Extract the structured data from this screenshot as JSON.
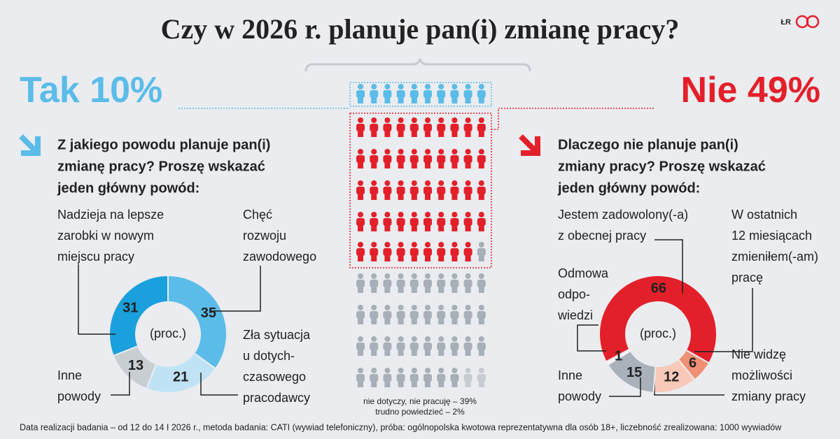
{
  "title": "Czy w 2026 r. planuje pan(i) zmianę pracy?",
  "logo": "ŁR",
  "footer": "Data realizacji badania – od 12 do 14 I 2026 r., metoda badania: CATI (wywiad telefoniczny), próba: ogólnopolska kwotowa reprezentatywna dla osób 18+, liczebność zrealizowana: 1000 wywiadów",
  "chart_data": [
    {
      "type": "pictogram",
      "series": [
        {
          "name": "Tak",
          "color": "#5bbce9",
          "values": [
            10
          ],
          "value_labels": [
            "10%"
          ]
        },
        {
          "name": "Nie",
          "color": "#e3202a",
          "values": [
            49
          ],
          "value_labels": [
            "49%"
          ]
        },
        {
          "name": "nie dotyczy, nie pracuję",
          "color": "#a7afb8",
          "values": [
            39
          ],
          "value_labels": [
            "– 39%"
          ]
        },
        {
          "name": "trudno powiedzieć",
          "color": "#c6ccd2",
          "values": [
            2
          ],
          "value_labels": [
            "– 2%"
          ]
        }
      ]
    },
    {
      "type": "donut",
      "title": [
        "Z jakiego powodu planuje pan(i)",
        "zmianę pracy? Proszę wskazać",
        "jeden główny powód:"
      ],
      "center_label": "(proc.)",
      "categories": [
        [
          "Chęć",
          "rozwoju",
          "zawodowego"
        ],
        [
          "Zła sytuacja",
          "u dotych-",
          "czasowego",
          "pracodawcy"
        ],
        [
          "Inne",
          "powody"
        ],
        [
          "Nadzieja na lepsze",
          "zarobki w nowym",
          "miejscu pracy"
        ]
      ],
      "values": [
        35,
        21,
        13,
        31
      ],
      "colors": [
        "#5bbce9",
        "#bfe3f5",
        "#c9ced3",
        "#1aa0dc"
      ]
    },
    {
      "type": "donut",
      "title": [
        "Dlaczego nie planuje pan(i)",
        "zmiany pracy? Proszę wskazać",
        "jeden główny powód:"
      ],
      "center_label": "(proc.)",
      "categories": [
        [
          "Jestem zadowolony(-a)",
          "z obecnej pracy"
        ],
        [
          "W ostatnich",
          "12 miesiącach",
          "zmieniłem(-am)",
          "pracę"
        ],
        [
          "Nie widzę",
          "możliwości",
          "zmiany pracy"
        ],
        [
          "Inne",
          "powody"
        ],
        [
          "Odmowa",
          "odpo-",
          "wiedzi"
        ]
      ],
      "values": [
        66,
        6,
        12,
        15,
        1
      ],
      "colors": [
        "#e3202a",
        "#ef8f74",
        "#f8c9b8",
        "#a9b1ba",
        "#f5f6f7"
      ]
    }
  ]
}
